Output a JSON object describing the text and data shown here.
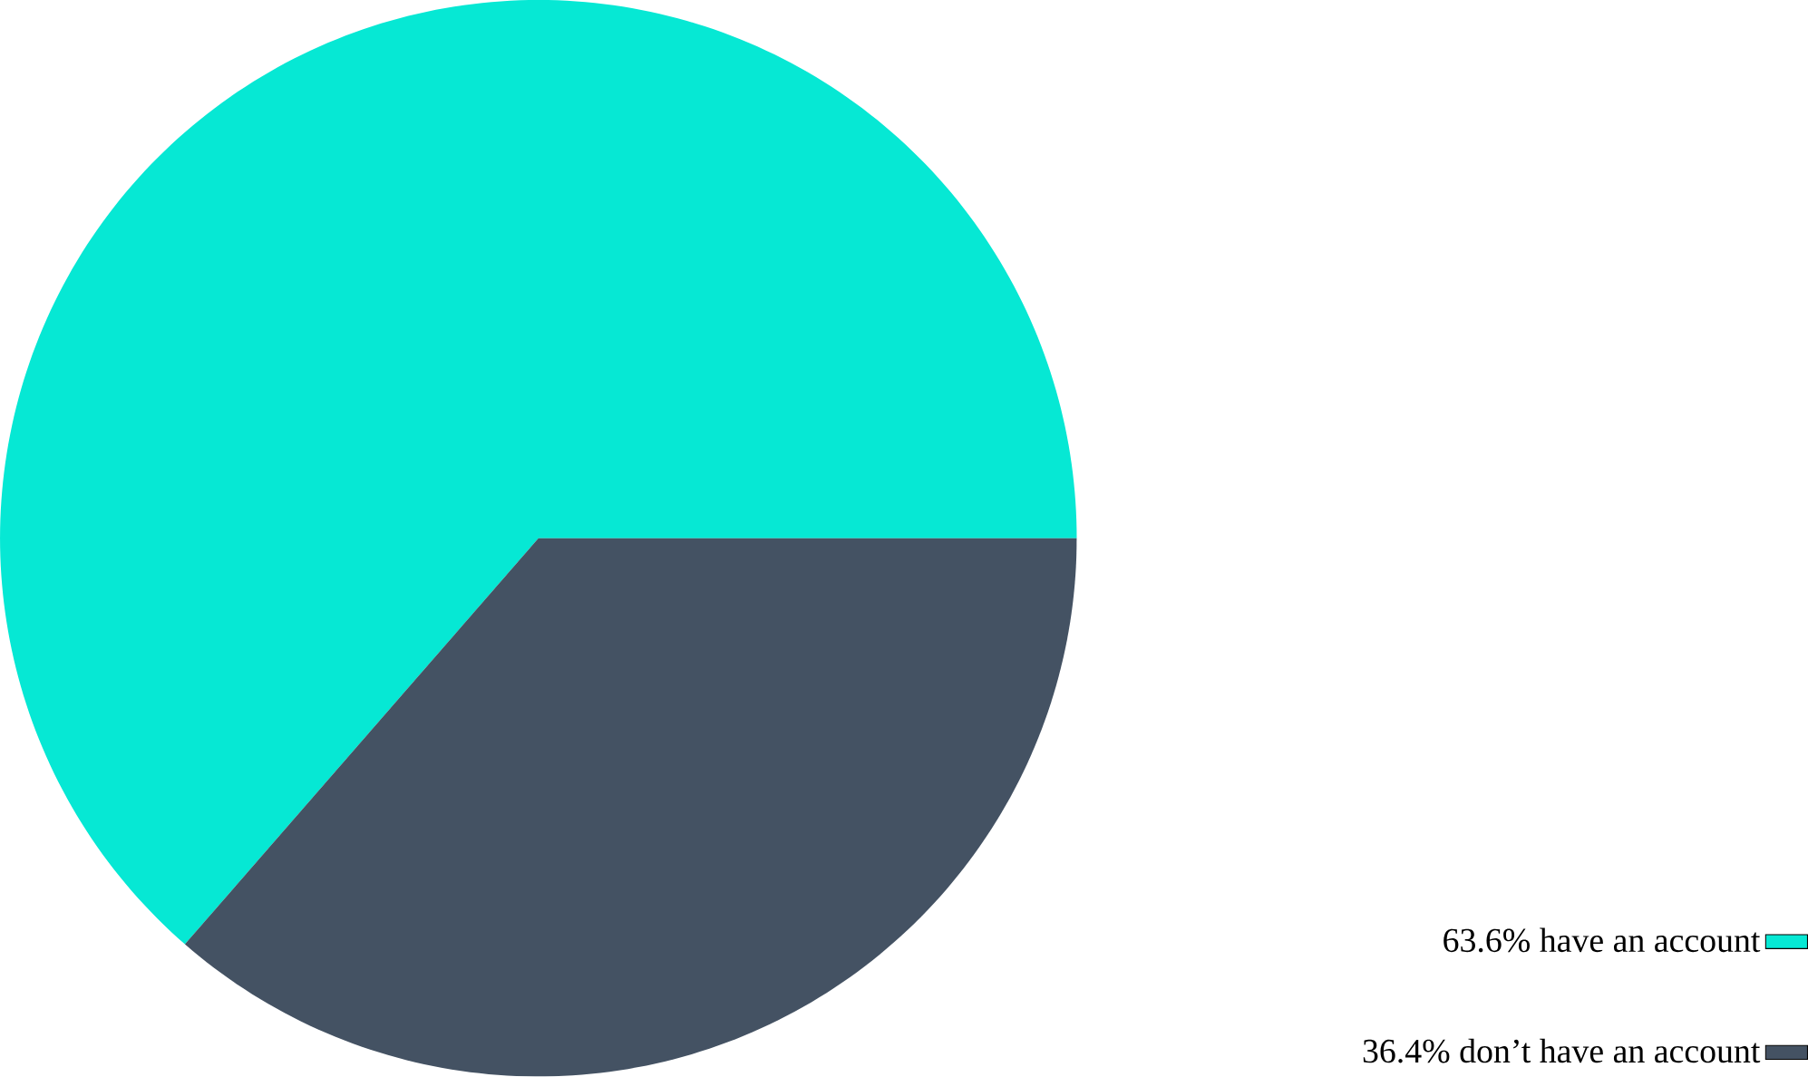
{
  "chart_data": {
    "type": "pie",
    "categories": [
      "63.6% have an account",
      "36.4% don’t have an account"
    ],
    "values": [
      63.6,
      36.4
    ],
    "colors": [
      "#06e8d4",
      "#445263"
    ],
    "legend": "bottom right"
  }
}
